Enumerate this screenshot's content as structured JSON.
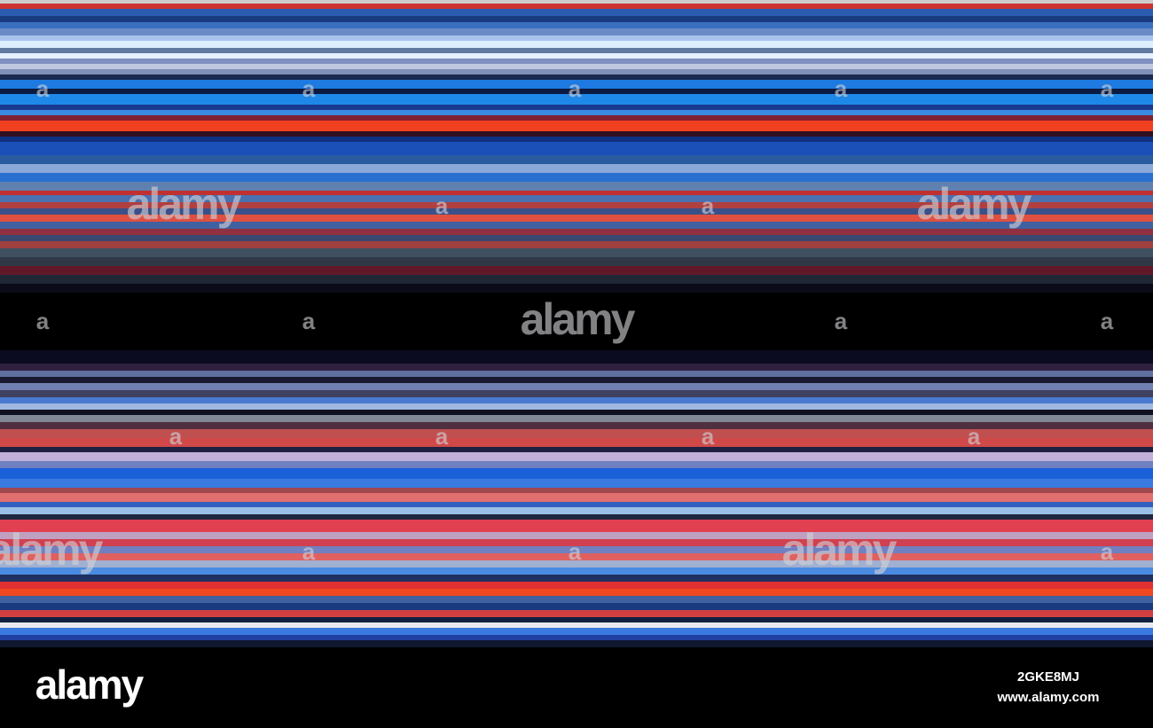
{
  "watermark": {
    "logo": "alamy",
    "mark": "a"
  },
  "footer": {
    "logo": "alamy",
    "image_id": "2GKE8MJ",
    "url": "www.alamy.com"
  }
}
